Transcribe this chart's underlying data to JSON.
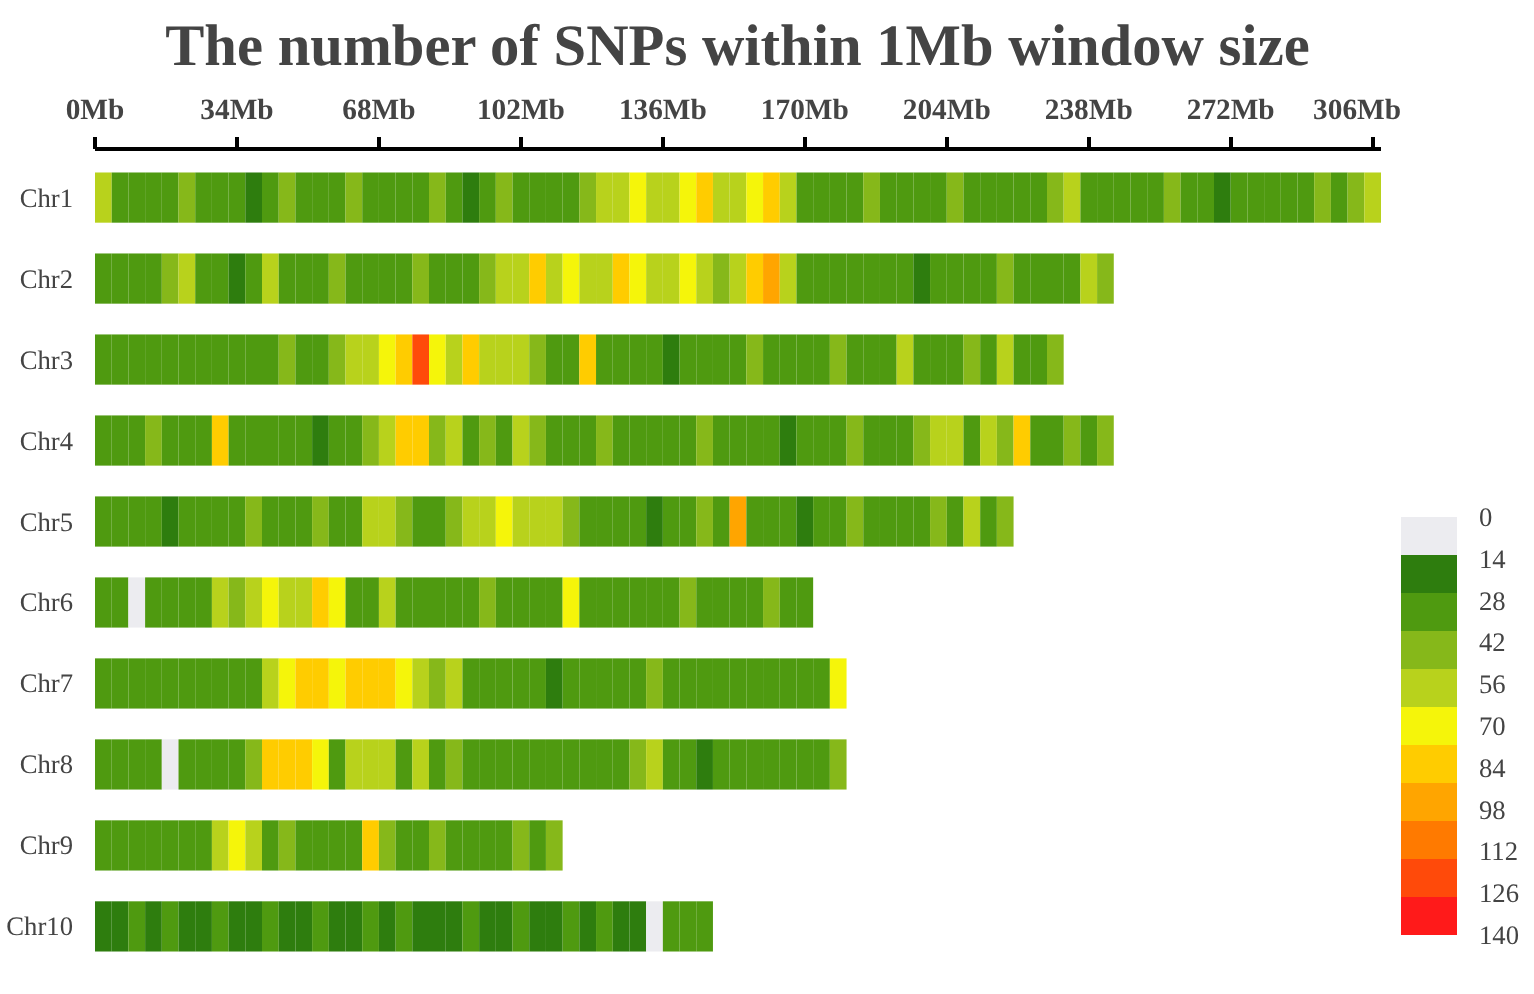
{
  "chart_data": {
    "type": "heatmap",
    "title": "The number of SNPs within 1Mb window size",
    "x": [
      2,
      6,
      10,
      14,
      18,
      22,
      26,
      30,
      34,
      38,
      42,
      46,
      50,
      54,
      58,
      62,
      66,
      70,
      74,
      78,
      82,
      86,
      90,
      94,
      98,
      102,
      106,
      110,
      114,
      118,
      122,
      126,
      130,
      134,
      138,
      142,
      146,
      150,
      154,
      158,
      162,
      166,
      170,
      174,
      178,
      182,
      186,
      190,
      194,
      198,
      202,
      206,
      210,
      214,
      218,
      222,
      226,
      230,
      234,
      238,
      242,
      246,
      250,
      254,
      258,
      262,
      266,
      270,
      274,
      278,
      282,
      286,
      290,
      294,
      298,
      302,
      306
    ],
    "xlim": [
      0,
      308
    ],
    "xticks": [
      {
        "value": 0,
        "label": "0Mb"
      },
      {
        "value": 34,
        "label": "34Mb"
      },
      {
        "value": 68,
        "label": "68Mb"
      },
      {
        "value": 102,
        "label": "102Mb"
      },
      {
        "value": 136,
        "label": "136Mb"
      },
      {
        "value": 170,
        "label": "170Mb"
      },
      {
        "value": 204,
        "label": "204Mb"
      },
      {
        "value": 238,
        "label": "238Mb"
      },
      {
        "value": 272,
        "label": "272Mb"
      },
      {
        "value": 306,
        "label": "306Mb"
      }
    ],
    "y_categories": [
      "Chr1",
      "Chr2",
      "Chr3",
      "Chr4",
      "Chr5",
      "Chr6",
      "Chr7",
      "Chr8",
      "Chr9",
      "Chr10"
    ],
    "clim": [
      0,
      140
    ],
    "cticks": [
      0,
      14,
      28,
      42,
      56,
      70,
      84,
      98,
      112,
      126,
      140
    ],
    "cells": [
      [
        56,
        28,
        28,
        28,
        28,
        42,
        28,
        28,
        28,
        14,
        28,
        42,
        28,
        28,
        28,
        42,
        28,
        28,
        28,
        28,
        42,
        28,
        14,
        28,
        42,
        28,
        28,
        28,
        28,
        42,
        56,
        56,
        70,
        56,
        56,
        70,
        84,
        56,
        56,
        70,
        84,
        56,
        28,
        28,
        28,
        28,
        42,
        28,
        28,
        28,
        28,
        42,
        28,
        28,
        28,
        28,
        28,
        42,
        56,
        28,
        28,
        28,
        28,
        28,
        42,
        28,
        28,
        14,
        28,
        28,
        28,
        28,
        28,
        42,
        28,
        42,
        56
      ],
      [
        28,
        28,
        28,
        28,
        42,
        56,
        28,
        28,
        14,
        28,
        56,
        28,
        28,
        28,
        42,
        28,
        28,
        28,
        28,
        42,
        28,
        28,
        28,
        42,
        56,
        56,
        84,
        56,
        70,
        56,
        56,
        84,
        70,
        56,
        56,
        70,
        56,
        42,
        56,
        84,
        98,
        56,
        28,
        28,
        28,
        28,
        28,
        28,
        28,
        14,
        28,
        28,
        28,
        28,
        42,
        28,
        28,
        28,
        28,
        56,
        42,
        null,
        null,
        null,
        null,
        null,
        null,
        null,
        null,
        null,
        null,
        null,
        null,
        null,
        null,
        null,
        null
      ],
      [
        28,
        28,
        28,
        28,
        28,
        28,
        28,
        28,
        28,
        28,
        28,
        42,
        28,
        28,
        42,
        56,
        56,
        70,
        84,
        126,
        70,
        56,
        84,
        56,
        56,
        56,
        42,
        28,
        28,
        84,
        28,
        28,
        28,
        28,
        14,
        28,
        28,
        28,
        28,
        42,
        28,
        28,
        28,
        28,
        42,
        28,
        28,
        28,
        56,
        28,
        28,
        28,
        42,
        28,
        56,
        28,
        28,
        42,
        null,
        null,
        null,
        null,
        null,
        null,
        null,
        null,
        null,
        null,
        null,
        null,
        null,
        null,
        null,
        null,
        null,
        null,
        null
      ],
      [
        28,
        28,
        28,
        42,
        28,
        28,
        28,
        84,
        28,
        28,
        28,
        28,
        28,
        14,
        28,
        28,
        42,
        56,
        84,
        84,
        42,
        56,
        28,
        42,
        28,
        56,
        42,
        28,
        28,
        28,
        42,
        28,
        28,
        28,
        28,
        28,
        42,
        28,
        28,
        28,
        28,
        14,
        28,
        28,
        28,
        42,
        28,
        28,
        28,
        42,
        56,
        56,
        28,
        56,
        42,
        84,
        28,
        28,
        42,
        28,
        42,
        null,
        null,
        null,
        null,
        null,
        null,
        null,
        null,
        null,
        null,
        null,
        null,
        null,
        null,
        null,
        null
      ],
      [
        28,
        28,
        28,
        28,
        14,
        28,
        28,
        28,
        28,
        42,
        28,
        28,
        28,
        42,
        28,
        28,
        56,
        56,
        42,
        28,
        28,
        42,
        56,
        56,
        70,
        56,
        56,
        56,
        42,
        28,
        28,
        28,
        28,
        14,
        28,
        28,
        42,
        28,
        98,
        28,
        28,
        28,
        14,
        28,
        28,
        42,
        28,
        28,
        28,
        28,
        42,
        28,
        56,
        28,
        42,
        null,
        null,
        null,
        null,
        null,
        null,
        null,
        null,
        null,
        null,
        null,
        null,
        null,
        null,
        null,
        null,
        null,
        null,
        null,
        null,
        null,
        null
      ],
      [
        28,
        28,
        0,
        28,
        28,
        28,
        28,
        56,
        42,
        56,
        70,
        56,
        56,
        84,
        70,
        28,
        28,
        56,
        28,
        28,
        28,
        28,
        28,
        42,
        28,
        28,
        28,
        28,
        70,
        28,
        28,
        28,
        28,
        28,
        28,
        42,
        28,
        28,
        28,
        28,
        42,
        28,
        28,
        null,
        null,
        null,
        null,
        null,
        null,
        null,
        null,
        null,
        null,
        null,
        null,
        null,
        null,
        null,
        null,
        null,
        null,
        null,
        null,
        null,
        null,
        null,
        null,
        null,
        null,
        null,
        null,
        null,
        null,
        null,
        null,
        null,
        null
      ],
      [
        28,
        28,
        28,
        28,
        28,
        28,
        28,
        28,
        28,
        28,
        56,
        70,
        84,
        84,
        70,
        84,
        84,
        84,
        70,
        56,
        42,
        56,
        28,
        28,
        28,
        28,
        28,
        14,
        28,
        28,
        28,
        28,
        28,
        42,
        28,
        28,
        28,
        28,
        28,
        28,
        28,
        28,
        28,
        28,
        70,
        null,
        null,
        null,
        null,
        null,
        null,
        null,
        null,
        null,
        null,
        null,
        null,
        null,
        null,
        null,
        null,
        null,
        null,
        null,
        null,
        null,
        null,
        null,
        null,
        null,
        null,
        null,
        null,
        null,
        null,
        null,
        null
      ],
      [
        28,
        28,
        28,
        28,
        0,
        28,
        28,
        28,
        28,
        42,
        84,
        84,
        84,
        70,
        28,
        56,
        56,
        56,
        28,
        56,
        28,
        42,
        28,
        28,
        28,
        28,
        28,
        28,
        28,
        28,
        28,
        28,
        42,
        56,
        28,
        28,
        14,
        28,
        28,
        28,
        28,
        28,
        28,
        28,
        42,
        null,
        null,
        null,
        null,
        null,
        null,
        null,
        null,
        null,
        null,
        null,
        null,
        null,
        null,
        null,
        null,
        null,
        null,
        null,
        null,
        null,
        null,
        null,
        null,
        null,
        null,
        null,
        null,
        null,
        null,
        null,
        null
      ],
      [
        28,
        28,
        28,
        28,
        28,
        28,
        28,
        56,
        70,
        56,
        28,
        42,
        28,
        28,
        28,
        28,
        84,
        42,
        28,
        28,
        42,
        28,
        28,
        28,
        28,
        42,
        28,
        42,
        null,
        null,
        null,
        null,
        null,
        null,
        null,
        null,
        null,
        null,
        null,
        null,
        null,
        null,
        null,
        null,
        null,
        null,
        null,
        null,
        null,
        null,
        null,
        null,
        null,
        null,
        null,
        null,
        null,
        null,
        null,
        null,
        null,
        null,
        null,
        null,
        null,
        null,
        null,
        null,
        null,
        null,
        null,
        null,
        null,
        null,
        null,
        null,
        null
      ],
      [
        14,
        14,
        28,
        14,
        28,
        14,
        14,
        28,
        14,
        14,
        28,
        14,
        14,
        28,
        14,
        14,
        28,
        14,
        28,
        14,
        14,
        14,
        28,
        14,
        14,
        28,
        14,
        14,
        28,
        14,
        28,
        14,
        14,
        0,
        28,
        28,
        28,
        null,
        null,
        null,
        null,
        null,
        null,
        null,
        null,
        null,
        null,
        null,
        null,
        null,
        null,
        null,
        null,
        null,
        null,
        null,
        null,
        null,
        null,
        null,
        null,
        null,
        null,
        null,
        null,
        null,
        null,
        null,
        null,
        null,
        null,
        null,
        null,
        null,
        null,
        null,
        null
      ]
    ]
  }
}
